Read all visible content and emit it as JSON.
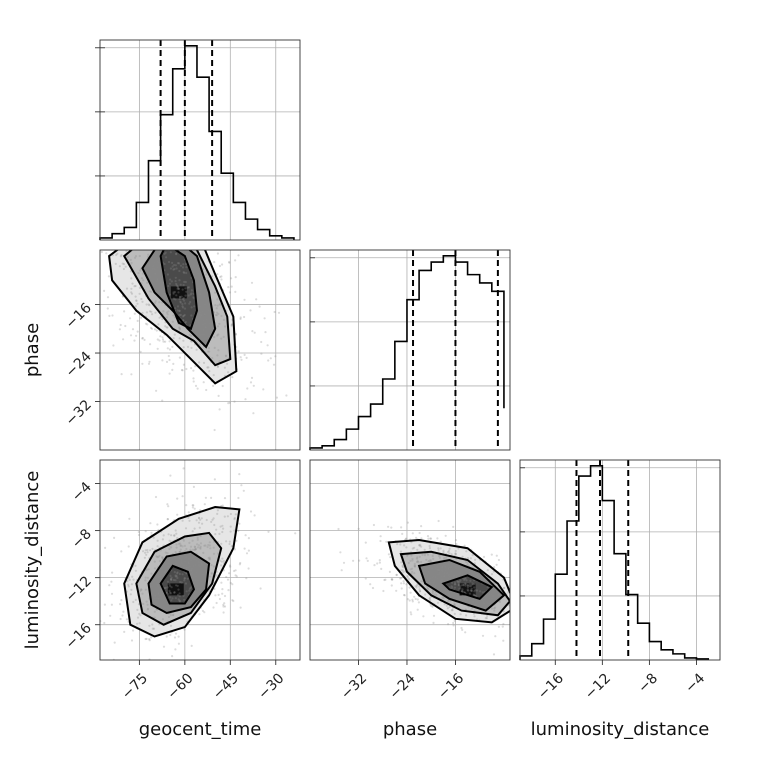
{
  "chart_data": {
    "type": "corner",
    "parameters": [
      "geocent_time",
      "phase",
      "luminosity_distance"
    ],
    "axes": {
      "geocent_time": {
        "label": "geocent_time",
        "range": [
          -88,
          -22
        ],
        "ticks": [
          -75,
          -60,
          -45,
          -30
        ]
      },
      "phase": {
        "label": "phase",
        "range": [
          -40,
          -7
        ],
        "ticks": [
          -32,
          -24,
          -16
        ]
      },
      "luminosity_distance": {
        "label": "luminosity_distance",
        "range": [
          -19,
          -2
        ],
        "ticks": [
          -16,
          -12,
          -8,
          -4
        ]
      }
    },
    "histograms": [
      {
        "parameter": "geocent_time",
        "bin_edges": [
          -88,
          -84,
          -80,
          -76,
          -72,
          -68,
          -64,
          -60,
          -56,
          -52,
          -48,
          -44,
          -40,
          -36,
          -32,
          -28,
          -24
        ],
        "counts": [
          1,
          3,
          6,
          18,
          38,
          60,
          82,
          93,
          78,
          52,
          32,
          18,
          10,
          5,
          2,
          1
        ],
        "quantiles": [
          -68,
          -60,
          -51
        ]
      },
      {
        "parameter": "phase",
        "bin_edges": [
          -40,
          -38,
          -36,
          -34,
          -32,
          -30,
          -28,
          -26,
          -24,
          -22,
          -20,
          -18,
          -16,
          -14,
          -12,
          -10,
          -8
        ],
        "counts": [
          1,
          2,
          5,
          10,
          16,
          22,
          34,
          52,
          72,
          86,
          90,
          93,
          90,
          84,
          80,
          76,
          20
        ],
        "quantiles": [
          -23,
          -16,
          -9
        ]
      },
      {
        "parameter": "luminosity_distance",
        "bin_edges": [
          -19,
          -18,
          -17,
          -16,
          -15,
          -14,
          -13,
          -12,
          -11,
          -10,
          -9,
          -8,
          -7,
          -6,
          -5,
          -4,
          -3
        ],
        "counts": [
          2,
          8,
          20,
          42,
          68,
          90,
          95,
          78,
          52,
          32,
          18,
          9,
          5,
          3,
          1,
          0.5
        ],
        "quantiles": [
          -14.2,
          -12.2,
          -9.8
        ]
      }
    ],
    "pairs": [
      {
        "x": "geocent_time",
        "y": "phase",
        "peak": [
          -62,
          -14
        ],
        "contours": [
          [
            [
              -68,
              -8
            ],
            [
              -66,
              -6
            ],
            [
              -60,
              -8
            ],
            [
              -57,
              -12
            ],
            [
              -56,
              -17
            ],
            [
              -58,
              -20
            ],
            [
              -62,
              -19
            ],
            [
              -66,
              -14
            ]
          ],
          [
            [
              -74,
              -10
            ],
            [
              -68,
              -5.5
            ],
            [
              -62,
              -5.5
            ],
            [
              -56,
              -8
            ],
            [
              -52,
              -14
            ],
            [
              -50,
              -20
            ],
            [
              -53,
              -23
            ],
            [
              -59,
              -20
            ],
            [
              -64,
              -17
            ],
            [
              -70,
              -14
            ]
          ],
          [
            [
              -80,
              -8
            ],
            [
              -74,
              -5.5
            ],
            [
              -62,
              -5
            ],
            [
              -56,
              -7
            ],
            [
              -50,
              -13
            ],
            [
              -46,
              -18
            ],
            [
              -45,
              -25
            ],
            [
              -50,
              -26
            ],
            [
              -57,
              -22
            ],
            [
              -64,
              -20
            ],
            [
              -72,
              -15
            ]
          ],
          [
            [
              -85,
              -8
            ],
            [
              -77,
              -5
            ],
            [
              -62,
              -4
            ],
            [
              -55,
              -5
            ],
            [
              -50,
              -11
            ],
            [
              -44,
              -18
            ],
            [
              -43,
              -27
            ],
            [
              -50,
              -29
            ],
            [
              -58,
              -25
            ],
            [
              -66,
              -21
            ],
            [
              -76,
              -17
            ],
            [
              -84,
              -12
            ]
          ]
        ]
      },
      {
        "x": "geocent_time",
        "y": "luminosity_distance",
        "peak": [
          -63,
          -13
        ],
        "contours": [
          [
            [
              -68,
              -12.5
            ],
            [
              -64,
              -11
            ],
            [
              -59,
              -11.5
            ],
            [
              -57,
              -13
            ],
            [
              -60,
              -14.2
            ],
            [
              -65,
              -14.2
            ]
          ],
          [
            [
              -72,
              -12.5
            ],
            [
              -66,
              -10.2
            ],
            [
              -58,
              -9.8
            ],
            [
              -52,
              -10.8
            ],
            [
              -53,
              -13
            ],
            [
              -58,
              -14.5
            ],
            [
              -66,
              -15
            ],
            [
              -71,
              -14.3
            ]
          ],
          [
            [
              -76,
              -12.5
            ],
            [
              -70,
              -9.8
            ],
            [
              -60,
              -8.5
            ],
            [
              -52,
              -8.2
            ],
            [
              -48,
              -9.5
            ],
            [
              -51,
              -12.5
            ],
            [
              -58,
              -15
            ],
            [
              -67,
              -16
            ],
            [
              -74,
              -15
            ]
          ],
          [
            [
              -80,
              -12.5
            ],
            [
              -74,
              -9
            ],
            [
              -62,
              -7
            ],
            [
              -50,
              -6
            ],
            [
              -42,
              -6.2
            ],
            [
              -44,
              -9.5
            ],
            [
              -52,
              -13.5
            ],
            [
              -60,
              -16.2
            ],
            [
              -70,
              -17
            ],
            [
              -78,
              -16
            ]
          ]
        ]
      },
      {
        "x": "phase",
        "y": "luminosity_distance",
        "peak": [
          -14,
          -13
        ],
        "contours": [
          [
            [
              -18,
              -12.5
            ],
            [
              -14,
              -11.8
            ],
            [
              -10,
              -12.8
            ],
            [
              -12,
              -13.8
            ],
            [
              -17,
              -13
            ]
          ],
          [
            [
              -22,
              -11
            ],
            [
              -17,
              -10.5
            ],
            [
              -12,
              -11.5
            ],
            [
              -8,
              -13.5
            ],
            [
              -11,
              -14.8
            ],
            [
              -17,
              -13.8
            ],
            [
              -21,
              -12.5
            ]
          ],
          [
            [
              -25,
              -10
            ],
            [
              -20,
              -9.8
            ],
            [
              -14,
              -10.5
            ],
            [
              -9,
              -12.5
            ],
            [
              -7,
              -14
            ],
            [
              -9,
              -15.2
            ],
            [
              -15,
              -14.8
            ],
            [
              -20,
              -13.5
            ],
            [
              -24,
              -11.5
            ]
          ],
          [
            [
              -27,
              -9
            ],
            [
              -22,
              -8.8
            ],
            [
              -14,
              -9.5
            ],
            [
              -8,
              -12
            ],
            [
              -6,
              -14.5
            ],
            [
              -10,
              -15.8
            ],
            [
              -16,
              -15.5
            ],
            [
              -22,
              -13.5
            ],
            [
              -26,
              -11
            ]
          ]
        ]
      }
    ],
    "grid": true
  }
}
